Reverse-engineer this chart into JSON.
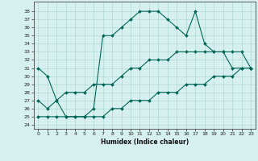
{
  "xlabel": "Humidex (Indice chaleur)",
  "xlim": [
    -0.5,
    23.5
  ],
  "ylim": [
    23.5,
    39.2
  ],
  "yticks": [
    24,
    25,
    26,
    27,
    28,
    29,
    30,
    31,
    32,
    33,
    34,
    35,
    36,
    37,
    38
  ],
  "xticks": [
    0,
    1,
    2,
    3,
    4,
    5,
    6,
    7,
    8,
    9,
    10,
    11,
    12,
    13,
    14,
    15,
    16,
    17,
    18,
    19,
    20,
    21,
    22,
    23
  ],
  "bg_color": "#d6f0ef",
  "grid_color": "#b0d8d0",
  "line_color": "#006655",
  "line1_x": [
    0,
    1,
    2,
    3,
    4,
    5,
    6,
    7,
    8,
    9,
    10,
    11,
    12,
    13,
    14,
    15,
    16,
    17,
    18,
    19,
    20,
    21,
    22,
    23
  ],
  "line1_y": [
    31,
    30,
    27,
    25,
    25,
    25,
    26,
    35,
    35,
    36,
    37,
    38,
    38,
    38,
    37,
    36,
    35,
    38,
    34,
    33,
    33,
    31,
    31,
    31
  ],
  "line2_x": [
    0,
    1,
    2,
    3,
    4,
    5,
    6,
    7,
    8,
    9,
    10,
    11,
    12,
    13,
    14,
    15,
    16,
    17,
    18,
    19,
    20,
    21,
    22,
    23
  ],
  "line2_y": [
    27,
    26,
    27,
    28,
    28,
    28,
    29,
    29,
    29,
    30,
    31,
    31,
    32,
    32,
    32,
    33,
    33,
    33,
    33,
    33,
    33,
    33,
    33,
    31
  ],
  "line3_x": [
    0,
    1,
    2,
    3,
    4,
    5,
    6,
    7,
    8,
    9,
    10,
    11,
    12,
    13,
    14,
    15,
    16,
    17,
    18,
    19,
    20,
    21,
    22,
    23
  ],
  "line3_y": [
    25,
    25,
    25,
    25,
    25,
    25,
    25,
    25,
    26,
    26,
    27,
    27,
    27,
    28,
    28,
    28,
    29,
    29,
    29,
    30,
    30,
    30,
    31,
    31
  ]
}
